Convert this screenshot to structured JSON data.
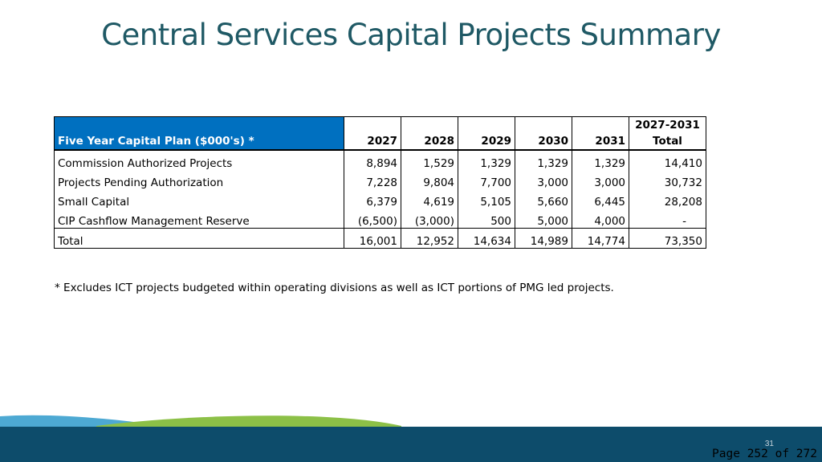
{
  "title": "Central Services Capital Projects Summary",
  "table": {
    "header_label": "Five Year Capital Plan ($000's) *",
    "years": [
      "2027",
      "2028",
      "2029",
      "2030",
      "2031"
    ],
    "total_header_line1": "2027-2031",
    "total_header_line2": "Total",
    "rows": [
      {
        "label": "Commission Authorized Projects",
        "values": [
          "8,894",
          "1,529",
          "1,329",
          "1,329",
          "1,329"
        ],
        "total": "14,410"
      },
      {
        "label": "Projects Pending Authorization",
        "values": [
          "7,228",
          "9,804",
          "7,700",
          "3,000",
          "3,000"
        ],
        "total": "30,732"
      },
      {
        "label": "Small Capital",
        "values": [
          "6,379",
          "4,619",
          "5,105",
          "5,660",
          "6,445"
        ],
        "total": "28,208"
      },
      {
        "label": "CIP Cashflow Management Reserve",
        "values": [
          "(6,500)",
          "(3,000)",
          "500",
          "5,000",
          "4,000"
        ],
        "total": "-"
      }
    ],
    "total_row": {
      "label": "Total",
      "values": [
        "16,001",
        "12,952",
        "14,634",
        "14,989",
        "14,774"
      ],
      "total": "73,350"
    }
  },
  "footnote": "* Excludes ICT projects budgeted within operating divisions as well as ICT portions of PMG led projects.",
  "slide_number": "31",
  "page_indicator": "Page 252 of 272",
  "colors": {
    "title": "#1f5965",
    "header_fill": "#0070c0",
    "footer_dark": "#0d4c6b",
    "footer_green": "#8cc047",
    "footer_blue": "#4da9d3"
  }
}
